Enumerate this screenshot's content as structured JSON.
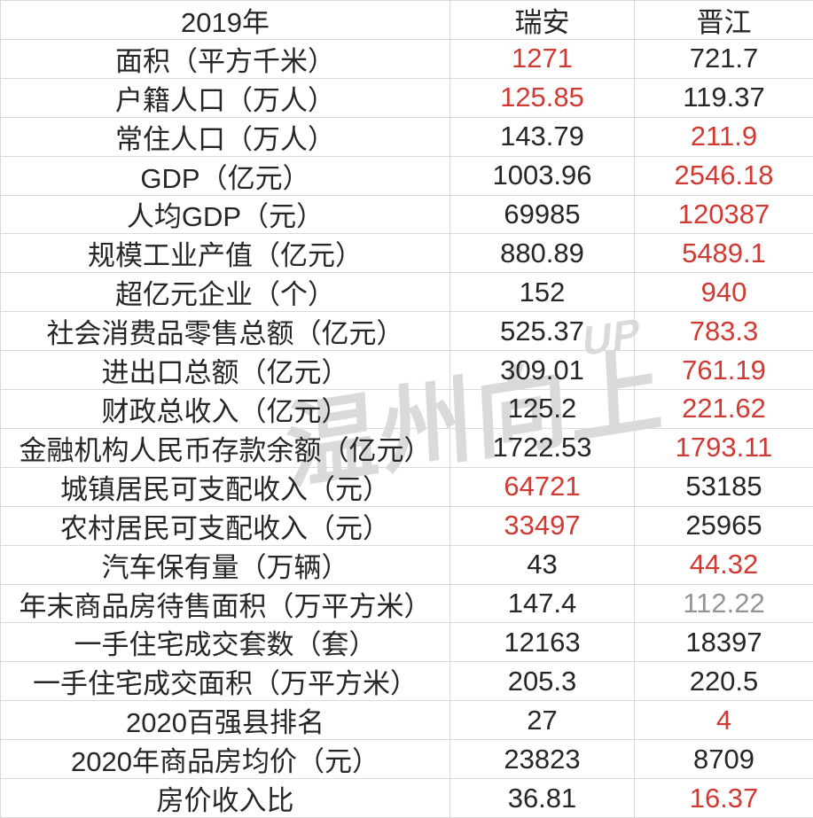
{
  "header": {
    "year_label": "2019年",
    "city1": "瑞安",
    "city2": "晋江"
  },
  "rows": [
    {
      "label": "面积（平方千米）",
      "v1": "1271",
      "c1": "red",
      "v2": "721.7",
      "c2": "black"
    },
    {
      "label": "户籍人口（万人）",
      "v1": "125.85",
      "c1": "red",
      "v2": "119.37",
      "c2": "black"
    },
    {
      "label": "常住人口（万人）",
      "v1": "143.79",
      "c1": "black",
      "v2": "211.9",
      "c2": "red"
    },
    {
      "label": "GDP（亿元）",
      "v1": "1003.96",
      "c1": "black",
      "v2": "2546.18",
      "c2": "red"
    },
    {
      "label": "人均GDP（元）",
      "v1": "69985",
      "c1": "black",
      "v2": "120387",
      "c2": "red"
    },
    {
      "label": "规模工业产值（亿元）",
      "v1": "880.89",
      "c1": "black",
      "v2": "5489.1",
      "c2": "red"
    },
    {
      "label": "超亿元企业（个）",
      "v1": "152",
      "c1": "black",
      "v2": "940",
      "c2": "red"
    },
    {
      "label": "社会消费品零售总额（亿元）",
      "v1": "525.37",
      "c1": "black",
      "v2": "783.3",
      "c2": "red"
    },
    {
      "label": "进出口总额（亿元）",
      "v1": "309.01",
      "c1": "black",
      "v2": "761.19",
      "c2": "red"
    },
    {
      "label": "财政总收入（亿元）",
      "v1": "125.2",
      "c1": "black",
      "v2": "221.62",
      "c2": "red"
    },
    {
      "label": "金融机构人民币存款余额（亿元）",
      "v1": "1722.53",
      "c1": "black",
      "v2": "1793.11",
      "c2": "red"
    },
    {
      "label": "城镇居民可支配收入（元）",
      "v1": "64721",
      "c1": "red",
      "v2": "53185",
      "c2": "black"
    },
    {
      "label": "农村居民可支配收入（元）",
      "v1": "33497",
      "c1": "red",
      "v2": "25965",
      "c2": "black"
    },
    {
      "label": "汽车保有量（万辆）",
      "v1": "43",
      "c1": "black",
      "v2": "44.32",
      "c2": "red"
    },
    {
      "label": "年末商品房待售面积（万平方米）",
      "v1": "147.4",
      "c1": "black",
      "v2": "112.22",
      "c2": "gray"
    },
    {
      "label": "一手住宅成交套数（套）",
      "v1": "12163",
      "c1": "black",
      "v2": "18397",
      "c2": "black"
    },
    {
      "label": "一手住宅成交面积（万平方米）",
      "v1": "205.3",
      "c1": "black",
      "v2": "220.5",
      "c2": "black"
    },
    {
      "label": "2020百强县排名",
      "v1": "27",
      "c1": "black",
      "v2": "4",
      "c2": "red"
    },
    {
      "label": "2020年商品房均价（元）",
      "v1": "23823",
      "c1": "black",
      "v2": "8709",
      "c2": "black"
    },
    {
      "label": "房价收入比",
      "v1": "36.81",
      "c1": "black",
      "v2": "16.37",
      "c2": "red"
    }
  ],
  "watermark": {
    "text": "温州向上",
    "up": "UP"
  },
  "colors": {
    "value_red": "#d03a33",
    "value_black": "#262626",
    "value_gray": "#949494",
    "grid_line": "#dadada",
    "watermark_gray": "#d6d6d6",
    "background": "#ffffff"
  },
  "chart_data": {
    "type": "table",
    "title": "2019年",
    "columns": [
      "2019年",
      "瑞安",
      "晋江"
    ],
    "rows": [
      [
        "面积（平方千米）",
        1271,
        721.7
      ],
      [
        "户籍人口（万人）",
        125.85,
        119.37
      ],
      [
        "常住人口（万人）",
        143.79,
        211.9
      ],
      [
        "GDP（亿元）",
        1003.96,
        2546.18
      ],
      [
        "人均GDP（元）",
        69985,
        120387
      ],
      [
        "规模工业产值（亿元）",
        880.89,
        5489.1
      ],
      [
        "超亿元企业（个）",
        152,
        940
      ],
      [
        "社会消费品零售总额（亿元）",
        525.37,
        783.3
      ],
      [
        "进出口总额（亿元）",
        309.01,
        761.19
      ],
      [
        "财政总收入（亿元）",
        125.2,
        221.62
      ],
      [
        "金融机构人民币存款余额（亿元）",
        1722.53,
        1793.11
      ],
      [
        "城镇居民可支配收入（元）",
        64721,
        53185
      ],
      [
        "农村居民可支配收入（元）",
        33497,
        25965
      ],
      [
        "汽车保有量（万辆）",
        43,
        44.32
      ],
      [
        "年末商品房待售面积（万平方米）",
        147.4,
        112.22
      ],
      [
        "一手住宅成交套数（套）",
        12163,
        18397
      ],
      [
        "一手住宅成交面积（万平方米）",
        205.3,
        220.5
      ],
      [
        "2020百强县排名",
        27,
        4
      ],
      [
        "2020年商品房均价（元）",
        23823,
        8709
      ],
      [
        "房价收入比",
        36.81,
        16.37
      ]
    ],
    "legend_note_red_color": "#d03a33",
    "grid": true
  }
}
